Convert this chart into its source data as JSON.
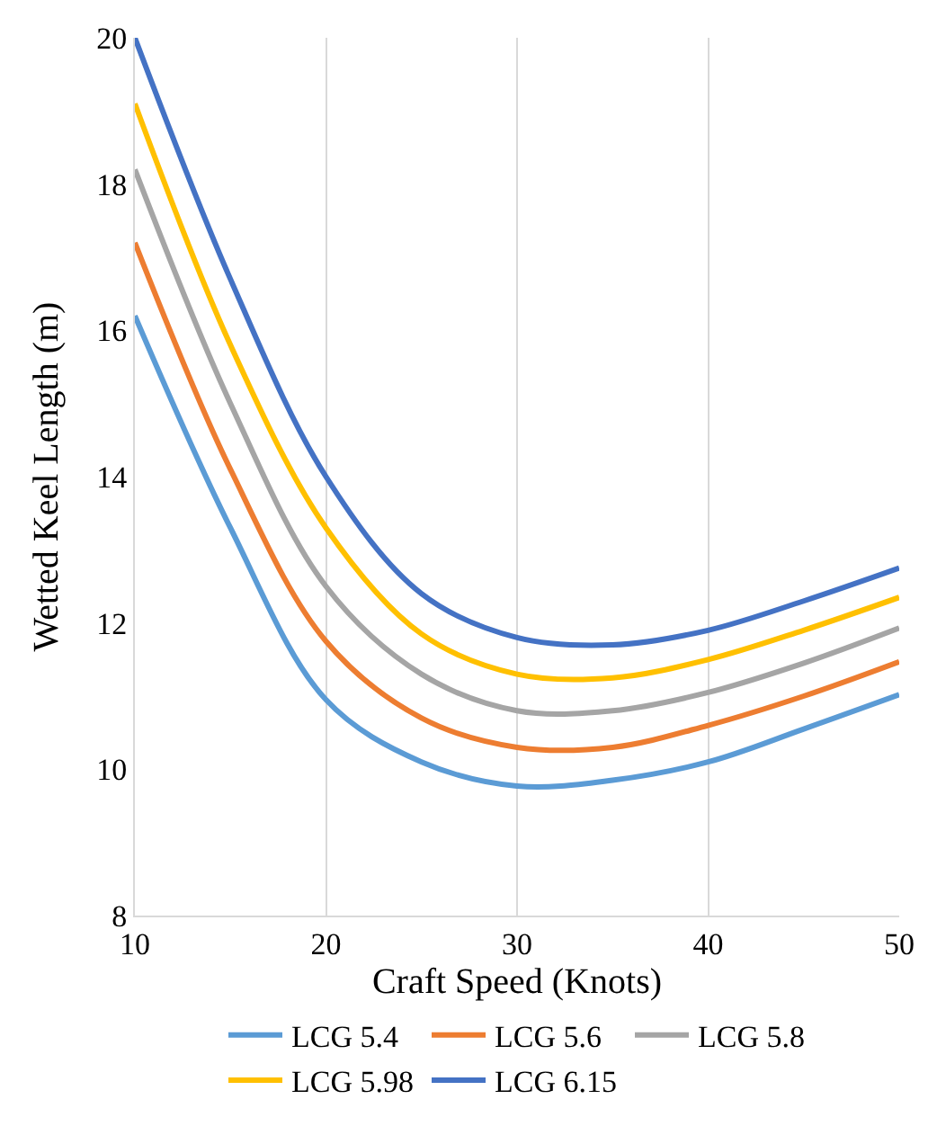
{
  "chart_data": {
    "type": "line",
    "xlabel": "Craft Speed (Knots)",
    "ylabel": "Wetted Keel Length (m)",
    "x": [
      10,
      15,
      20,
      25,
      30,
      35,
      40,
      45,
      50
    ],
    "xlim": [
      10,
      50
    ],
    "xticks": [
      10,
      20,
      30,
      40,
      50
    ],
    "ylim": [
      8,
      20
    ],
    "yticks": [
      8,
      10,
      12,
      14,
      16,
      18,
      20
    ],
    "grid": "x",
    "legend": "bottom",
    "marker": "none",
    "line_style": "solid",
    "series": [
      {
        "name": "LCG 5.4",
        "color": "#5b9bd5",
        "values": [
          16.2,
          13.3,
          10.95,
          10.1,
          9.77,
          9.85,
          10.1,
          10.55,
          11.02
        ]
      },
      {
        "name": "LCG 5.6",
        "color": "#ed7d31",
        "values": [
          17.2,
          14.1,
          11.75,
          10.7,
          10.3,
          10.3,
          10.6,
          11.0,
          11.47
        ]
      },
      {
        "name": "LCG 5.8",
        "color": "#a5a5a5",
        "values": [
          18.2,
          15.0,
          12.5,
          11.3,
          10.8,
          10.8,
          11.05,
          11.45,
          11.93
        ]
      },
      {
        "name": "LCG 5.98",
        "color": "#ffc000",
        "values": [
          19.1,
          15.8,
          13.3,
          11.85,
          11.3,
          11.25,
          11.5,
          11.9,
          12.35
        ]
      },
      {
        "name": "LCG 6.15",
        "color": "#4472c4",
        "values": [
          20.0,
          16.7,
          14.0,
          12.4,
          11.8,
          11.7,
          11.9,
          12.3,
          12.75
        ]
      }
    ]
  }
}
